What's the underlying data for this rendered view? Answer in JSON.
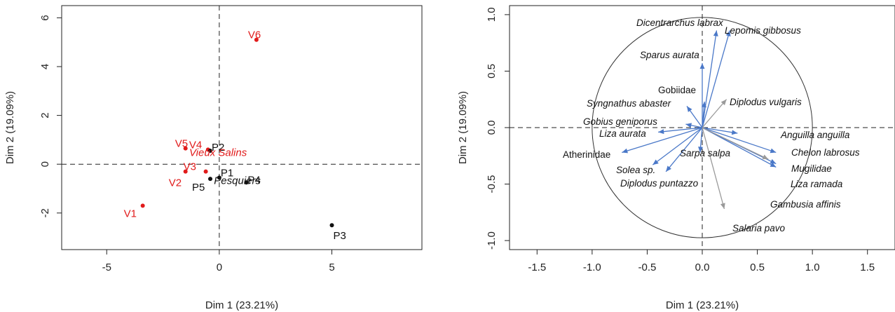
{
  "colors": {
    "ind_red": "#e11b1b",
    "ind_black": "#111111",
    "arrow_blue": "#4a78c8",
    "arrow_grey": "#9a9a9a"
  },
  "chart_data": [
    {
      "type": "scatter",
      "xlabel": "Dim 1 (23.21%)",
      "ylabel": "Dim 2 (19.09%)",
      "xlim": [
        -7,
        9
      ],
      "ylim": [
        -3.5,
        6.5
      ],
      "xticks": [
        -5,
        0,
        5
      ],
      "yticks": [
        -2,
        0,
        2,
        4,
        6
      ],
      "reference_lines": {
        "x": 0,
        "y": 0,
        "style": "dashed"
      },
      "points": [
        {
          "label": "V6",
          "x": 1.65,
          "y": 5.1,
          "group": "Vieux Salins"
        },
        {
          "label": "V4",
          "x": -0.5,
          "y": 0.6,
          "group": "Vieux Salins"
        },
        {
          "label": "V5",
          "x": -1.5,
          "y": 0.65,
          "group": "Vieux Salins"
        },
        {
          "label": "V3",
          "x": -0.6,
          "y": -0.3,
          "group": "Vieux Salins"
        },
        {
          "label": "V2",
          "x": -1.5,
          "y": -0.3,
          "group": "Vieux Salins"
        },
        {
          "label": "V1",
          "x": -3.4,
          "y": -1.7,
          "group": "Vieux Salins"
        },
        {
          "label": "P2",
          "x": -0.4,
          "y": 0.55,
          "group": "Pesquiers"
        },
        {
          "label": "P1",
          "x": 0.0,
          "y": -0.55,
          "group": "Pesquiers"
        },
        {
          "label": "P5",
          "x": -0.4,
          "y": -0.6,
          "group": "Pesquiers"
        },
        {
          "label": "P4",
          "x": 1.2,
          "y": -0.75,
          "group": "Pesquiers"
        },
        {
          "label": "P3",
          "x": 5.0,
          "y": -2.5,
          "group": "Pesquiers"
        }
      ],
      "centroids": [
        {
          "label": "Vieux Salins",
          "x": -0.9,
          "y": 0.45
        },
        {
          "label": "Pesquiers",
          "x": 0.2,
          "y": -0.7
        }
      ]
    },
    {
      "type": "scatter",
      "xlabel": "Dim 1 (23.21%)",
      "ylabel": "Dim 2 (19.09%)",
      "xlim": [
        -1.75,
        1.75
      ],
      "ylim": [
        -1.08,
        1.08
      ],
      "xticks": [
        -1.5,
        -1.0,
        -0.5,
        0.0,
        0.5,
        1.0,
        1.5
      ],
      "xtick_labels": [
        "-1.5",
        "-1.0",
        "-0.5",
        "0.0",
        "0.5",
        "1.0",
        "1.5"
      ],
      "yticks": [
        -1.0,
        -0.5,
        0.0,
        0.5,
        1.0
      ],
      "ytick_labels": [
        "-1.0",
        "-0.5",
        "0.0",
        "0.5",
        "1.0"
      ],
      "reference_lines": {
        "x": 0,
        "y": 0,
        "style": "dashed"
      },
      "correlation_circle": {
        "radius": 1
      },
      "vectors": [
        {
          "name": "Dicentrarchus labrax",
          "x": 0.13,
          "y": 0.86,
          "italic": true
        },
        {
          "name": "Lepomis gibbosus",
          "x": 0.25,
          "y": 0.86,
          "italic": true
        },
        {
          "name": "Sparus aurata",
          "x": 0.0,
          "y": 0.57,
          "italic": true
        },
        {
          "name": "Gobiidae",
          "x": 0.02,
          "y": 0.23,
          "italic": false
        },
        {
          "name": "Diplodus vulgaris",
          "x": 0.22,
          "y": 0.25,
          "italic": true
        },
        {
          "name": "Syngnathus abaster",
          "x": -0.14,
          "y": 0.19,
          "italic": true
        },
        {
          "name": "Gobius geniporus",
          "x": -0.15,
          "y": 0.03,
          "italic": true
        },
        {
          "name": "Liza aurata",
          "x": -0.4,
          "y": -0.04,
          "italic": true
        },
        {
          "name": "Atherinidae",
          "x": -0.73,
          "y": -0.22,
          "italic": false
        },
        {
          "name": "Solea sp.",
          "x": -0.45,
          "y": -0.33,
          "italic": true
        },
        {
          "name": "Diplodus puntazzo",
          "x": -0.33,
          "y": -0.39,
          "italic": true
        },
        {
          "name": "Sarpa salpa",
          "x": -0.02,
          "y": -0.22,
          "italic": true
        },
        {
          "name": "Anguilla anguilla",
          "x": 0.32,
          "y": -0.05,
          "italic": true
        },
        {
          "name": "Chelon labrosus",
          "x": 0.67,
          "y": -0.22,
          "italic": true
        },
        {
          "name": "Mugilidae",
          "x": 0.67,
          "y": -0.32,
          "italic": true
        },
        {
          "name": "Liza ramada",
          "x": 0.67,
          "y": -0.35,
          "italic": true
        },
        {
          "name": "Gambusia affinis",
          "x": 0.6,
          "y": -0.28,
          "italic": true
        },
        {
          "name": "Salaria pavo",
          "x": 0.2,
          "y": -0.72,
          "italic": true
        }
      ]
    }
  ]
}
